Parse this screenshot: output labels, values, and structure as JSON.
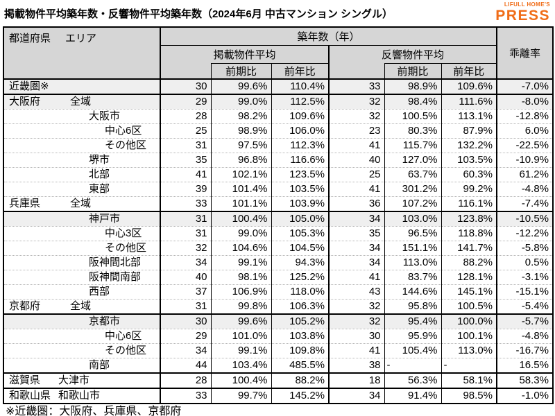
{
  "title": "掲載物件平均築年数・反響物件平均築年数（2024年6月 中古マンション シングル）",
  "logo": {
    "line1": "LIFULL HOME'S",
    "line2": "PRESS",
    "color": "#f06c17"
  },
  "header": {
    "corner_pref": "都道府県",
    "corner_area": "エリア",
    "group": "築年数（年）",
    "listed": "掲載物件平均",
    "response": "反響物件平均",
    "deviation": "乖離率",
    "prev_period": "前期比",
    "prev_year": "前年比"
  },
  "footnote": "※近畿圏：大阪府、兵庫県、京都府",
  "colors": {
    "header_bg": "#d6d6d6",
    "shaded_row_bg": "#efefef",
    "border": "#000000",
    "dotted_grid": "#b5b5b5",
    "logo_orange": "#f06c17"
  },
  "chart_data": {
    "type": "table",
    "title": "掲載物件平均築年数・反響物件平均築年数（2024年6月 中古マンション シングル）",
    "columns": [
      "都道府県 エリア",
      "掲載物件平均 築年数（年）",
      "掲載物件平均 前期比",
      "掲載物件平均 前年比",
      "反響物件平均 築年数（年）",
      "反響物件平均 前期比",
      "反響物件平均 前年比",
      "乖離率"
    ],
    "rows": [
      {
        "pref": "近畿圏※",
        "area": "",
        "lvl": 0,
        "shaded": true,
        "section": false,
        "values": [
          "30",
          "99.6%",
          "110.4%",
          "33",
          "98.9%",
          "109.6%",
          "-7.0%"
        ]
      },
      {
        "pref": "大阪府",
        "area": "全域",
        "lvl": 1,
        "shaded": true,
        "section": true,
        "values": [
          "29",
          "99.0%",
          "112.5%",
          "32",
          "98.4%",
          "111.6%",
          "-8.0%"
        ]
      },
      {
        "pref": "",
        "area": "大阪市",
        "lvl": 2,
        "shaded": false,
        "section": false,
        "values": [
          "28",
          "98.2%",
          "109.6%",
          "32",
          "100.5%",
          "113.1%",
          "-12.8%"
        ]
      },
      {
        "pref": "",
        "area": "中心6区",
        "lvl": 3,
        "shaded": false,
        "section": false,
        "values": [
          "25",
          "98.9%",
          "106.0%",
          "23",
          "80.3%",
          "87.9%",
          "6.0%"
        ]
      },
      {
        "pref": "",
        "area": "その他区",
        "lvl": 3,
        "shaded": false,
        "section": false,
        "values": [
          "31",
          "97.5%",
          "112.3%",
          "41",
          "115.7%",
          "132.2%",
          "-22.5%"
        ]
      },
      {
        "pref": "",
        "area": "堺市",
        "lvl": 2,
        "shaded": false,
        "section": false,
        "values": [
          "35",
          "96.8%",
          "116.6%",
          "40",
          "127.0%",
          "103.5%",
          "-10.9%"
        ]
      },
      {
        "pref": "",
        "area": "北部",
        "lvl": 2,
        "shaded": false,
        "section": false,
        "values": [
          "41",
          "102.1%",
          "123.5%",
          "25",
          "63.7%",
          "60.3%",
          "61.2%"
        ]
      },
      {
        "pref": "",
        "area": "東部",
        "lvl": 2,
        "shaded": false,
        "section": false,
        "values": [
          "39",
          "101.4%",
          "103.5%",
          "41",
          "301.2%",
          "99.2%",
          "-4.8%"
        ]
      },
      {
        "pref": "兵庫県",
        "area": "全域",
        "lvl": 1,
        "shaded": false,
        "section": false,
        "values": [
          "33",
          "101.1%",
          "103.9%",
          "36",
          "107.2%",
          "116.1%",
          "-7.4%"
        ]
      },
      {
        "pref": "",
        "area": "神戸市",
        "lvl": 2,
        "shaded": true,
        "section": true,
        "values": [
          "31",
          "100.4%",
          "105.0%",
          "34",
          "103.0%",
          "123.8%",
          "-10.5%"
        ]
      },
      {
        "pref": "",
        "area": "中心3区",
        "lvl": 3,
        "shaded": false,
        "section": false,
        "values": [
          "31",
          "99.0%",
          "105.3%",
          "35",
          "96.5%",
          "118.8%",
          "-12.2%"
        ]
      },
      {
        "pref": "",
        "area": "その他区",
        "lvl": 3,
        "shaded": false,
        "section": false,
        "values": [
          "32",
          "104.6%",
          "104.5%",
          "34",
          "151.1%",
          "141.7%",
          "-5.8%"
        ]
      },
      {
        "pref": "",
        "area": "阪神間北部",
        "lvl": 2,
        "shaded": false,
        "section": false,
        "values": [
          "34",
          "99.1%",
          "94.3%",
          "34",
          "113.0%",
          "88.2%",
          "0.5%"
        ]
      },
      {
        "pref": "",
        "area": "阪神間南部",
        "lvl": 2,
        "shaded": false,
        "section": false,
        "values": [
          "40",
          "98.1%",
          "125.2%",
          "41",
          "83.7%",
          "128.1%",
          "-3.1%"
        ]
      },
      {
        "pref": "",
        "area": "西部",
        "lvl": 2,
        "shaded": false,
        "section": false,
        "values": [
          "37",
          "106.9%",
          "118.0%",
          "43",
          "144.6%",
          "145.1%",
          "-15.1%"
        ]
      },
      {
        "pref": "京都府",
        "area": "全域",
        "lvl": 1,
        "shaded": false,
        "section": false,
        "values": [
          "31",
          "99.8%",
          "106.3%",
          "32",
          "95.8%",
          "100.5%",
          "-5.4%"
        ]
      },
      {
        "pref": "",
        "area": "京都市",
        "lvl": 2,
        "shaded": true,
        "section": true,
        "values": [
          "30",
          "99.6%",
          "105.2%",
          "32",
          "95.4%",
          "100.0%",
          "-5.7%"
        ]
      },
      {
        "pref": "",
        "area": "中心6区",
        "lvl": 3,
        "shaded": false,
        "section": false,
        "values": [
          "29",
          "101.0%",
          "103.8%",
          "30",
          "95.9%",
          "100.1%",
          "-4.8%"
        ]
      },
      {
        "pref": "",
        "area": "その他区",
        "lvl": 3,
        "shaded": false,
        "section": false,
        "values": [
          "34",
          "99.1%",
          "109.8%",
          "41",
          "105.4%",
          "113.0%",
          "-16.7%"
        ]
      },
      {
        "pref": "",
        "area": "南部",
        "lvl": 2,
        "shaded": false,
        "section": false,
        "values": [
          "44",
          "103.4%",
          "485.5%",
          "38",
          "-",
          "-",
          "16.5%"
        ]
      },
      {
        "pref": "滋賀県",
        "area": "大津市",
        "lvl": 4,
        "shaded": false,
        "section": true,
        "values": [
          "28",
          "100.4%",
          "88.2%",
          "18",
          "56.3%",
          "58.1%",
          "58.3%"
        ]
      },
      {
        "pref": "和歌山県",
        "area": "和歌山市",
        "lvl": 4,
        "shaded": false,
        "section": true,
        "values": [
          "33",
          "99.7%",
          "145.2%",
          "34",
          "91.4%",
          "98.5%",
          "-1.0%"
        ]
      }
    ],
    "footnote": "※近畿圏：大阪府、兵庫県、京都府"
  }
}
